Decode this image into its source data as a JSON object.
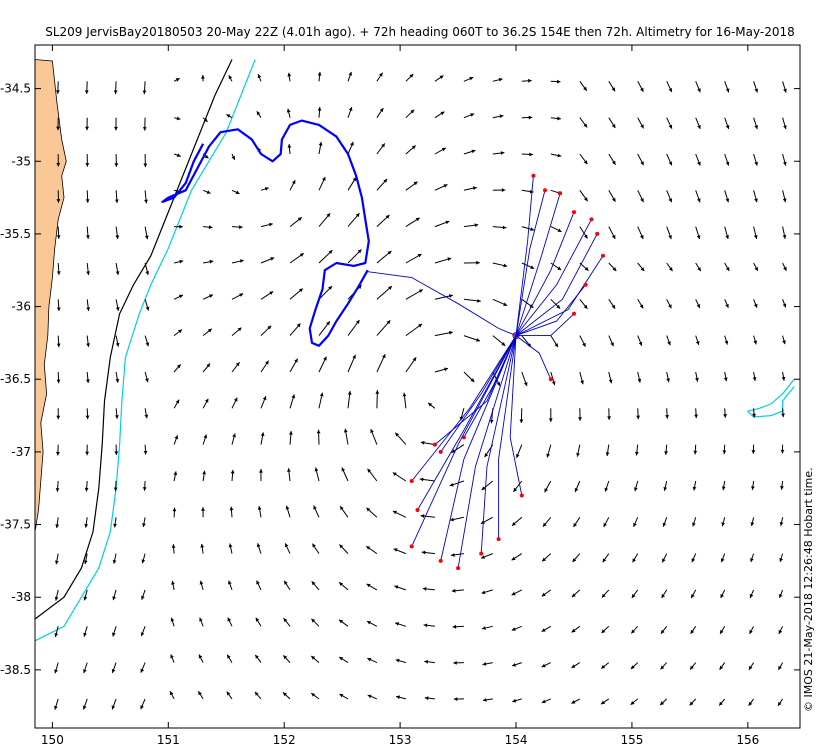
{
  "chart_data": {
    "type": "map-vector-field",
    "title": "SL209 JervisBay20180503 20-May 22Z (4.01h ago). + 72h heading 060T to 36.2S 154E then 72h. Altimetry for 16-May-2018",
    "credit": "© IMOS 21-May-2018 12:26:48 Hobart time.",
    "xlim": [
      149.85,
      156.45
    ],
    "ylim": [
      -38.9,
      -34.2
    ],
    "x_ticks": [
      150,
      151,
      152,
      153,
      154,
      155,
      156
    ],
    "x_tick_labels": [
      "150",
      "151",
      "152",
      "153",
      "154",
      "155",
      "156"
    ],
    "y_ticks": [
      -34.5,
      -35,
      -35.5,
      -36,
      -36.5,
      -37,
      -37.5,
      -38,
      -38.5
    ],
    "y_tick_labels": [
      "-34.5",
      "-35",
      "-35.5",
      "-36",
      "-36.5",
      "-37",
      "-37.5",
      "-38",
      "-38.5"
    ],
    "grid": false,
    "colors": {
      "land": "#fac896",
      "glider_track": "#0000ff",
      "forecast_tracks": "#0000cc",
      "forecast_endpoints": "#ff0000",
      "isobath_black": "#000000",
      "isobath_cyan": "#00d0e0",
      "current_arrows": "#000000"
    },
    "features": {
      "target": {
        "lon": 154.0,
        "lat": -36.2
      },
      "glider_position": {
        "lon": 152.7,
        "lat": -35.77
      },
      "forecast_heading_deg": 60,
      "forecast_hours": 72
    },
    "coastline": [
      [
        149.85,
        -34.3
      ],
      [
        150.0,
        -34.31
      ],
      [
        150.04,
        -34.6
      ],
      [
        150.08,
        -34.85
      ],
      [
        150.12,
        -35.0
      ],
      [
        150.08,
        -35.1
      ],
      [
        150.1,
        -35.25
      ],
      [
        150.05,
        -35.4
      ],
      [
        150.02,
        -35.6
      ],
      [
        150.0,
        -35.8
      ],
      [
        149.97,
        -36.0
      ],
      [
        149.96,
        -36.2
      ],
      [
        149.93,
        -36.4
      ],
      [
        149.95,
        -36.6
      ],
      [
        149.9,
        -36.8
      ],
      [
        149.92,
        -37.0
      ],
      [
        149.9,
        -37.2
      ],
      [
        149.88,
        -37.4
      ],
      [
        149.85,
        -37.55
      ]
    ],
    "isobath_200m": [
      [
        151.55,
        -34.3
      ],
      [
        151.4,
        -34.55
      ],
      [
        151.25,
        -34.85
      ],
      [
        151.15,
        -35.05
      ],
      [
        151.05,
        -35.25
      ],
      [
        150.95,
        -35.45
      ],
      [
        150.85,
        -35.65
      ],
      [
        150.7,
        -35.85
      ],
      [
        150.58,
        -36.05
      ],
      [
        150.5,
        -36.35
      ],
      [
        150.45,
        -36.65
      ],
      [
        150.43,
        -36.95
      ],
      [
        150.4,
        -37.25
      ],
      [
        150.35,
        -37.55
      ],
      [
        150.25,
        -37.8
      ],
      [
        150.1,
        -38.0
      ],
      [
        149.85,
        -38.15
      ]
    ],
    "isobath_2000m": [
      [
        151.75,
        -34.3
      ],
      [
        151.65,
        -34.5
      ],
      [
        151.5,
        -34.8
      ],
      [
        151.35,
        -35.0
      ],
      [
        151.2,
        -35.2
      ],
      [
        151.1,
        -35.4
      ],
      [
        151.0,
        -35.6
      ],
      [
        150.85,
        -35.85
      ],
      [
        150.75,
        -36.05
      ],
      [
        150.63,
        -36.35
      ],
      [
        150.6,
        -36.65
      ],
      [
        150.58,
        -36.95
      ],
      [
        150.55,
        -37.25
      ],
      [
        150.5,
        -37.55
      ],
      [
        150.4,
        -37.8
      ],
      [
        150.25,
        -38.0
      ],
      [
        150.1,
        -38.2
      ],
      [
        149.85,
        -38.3
      ]
    ],
    "island_contour": [
      [
        156.4,
        -36.55
      ],
      [
        156.35,
        -36.6
      ],
      [
        156.3,
        -36.65
      ],
      [
        156.3,
        -36.72
      ],
      [
        156.2,
        -36.75
      ],
      [
        156.05,
        -36.76
      ],
      [
        156.0,
        -36.72
      ],
      [
        156.1,
        -36.7
      ],
      [
        156.2,
        -36.67
      ],
      [
        156.3,
        -36.6
      ],
      [
        156.4,
        -36.5
      ]
    ],
    "glider_track": [
      [
        152.72,
        -35.75
      ],
      [
        152.65,
        -35.85
      ],
      [
        152.55,
        -35.98
      ],
      [
        152.45,
        -36.1
      ],
      [
        152.38,
        -36.2
      ],
      [
        152.3,
        -36.27
      ],
      [
        152.24,
        -36.25
      ],
      [
        152.22,
        -36.15
      ],
      [
        152.27,
        -36.02
      ],
      [
        152.33,
        -35.88
      ],
      [
        152.35,
        -35.75
      ],
      [
        152.45,
        -35.7
      ],
      [
        152.6,
        -35.72
      ],
      [
        152.7,
        -35.7
      ],
      [
        152.73,
        -35.55
      ],
      [
        152.7,
        -35.4
      ],
      [
        152.67,
        -35.25
      ],
      [
        152.62,
        -35.1
      ],
      [
        152.55,
        -34.95
      ],
      [
        152.45,
        -34.83
      ],
      [
        152.3,
        -34.75
      ],
      [
        152.15,
        -34.72
      ],
      [
        152.05,
        -34.75
      ],
      [
        151.98,
        -34.85
      ],
      [
        151.97,
        -34.95
      ],
      [
        151.9,
        -35.0
      ],
      [
        151.8,
        -34.95
      ],
      [
        151.72,
        -34.85
      ],
      [
        151.6,
        -34.78
      ],
      [
        151.45,
        -34.8
      ],
      [
        151.35,
        -34.9
      ],
      [
        151.25,
        -35.05
      ],
      [
        151.15,
        -35.2
      ],
      [
        151.0,
        -35.25
      ],
      [
        150.95,
        -35.28
      ],
      [
        151.05,
        -35.25
      ],
      [
        151.15,
        -35.15
      ],
      [
        151.22,
        -35.0
      ],
      [
        151.3,
        -34.88
      ]
    ],
    "forecast_tracks": [
      [
        [
          152.72,
          -35.76
        ],
        [
          153.1,
          -35.8
        ],
        [
          153.5,
          -35.98
        ],
        [
          153.85,
          -36.15
        ],
        [
          154.0,
          -36.2
        ]
      ],
      [
        [
          154.0,
          -36.2
        ],
        [
          154.12,
          -35.6
        ],
        [
          154.25,
          -35.2
        ]
      ],
      [
        [
          154.0,
          -36.2
        ],
        [
          154.22,
          -35.65
        ],
        [
          154.38,
          -35.22
        ]
      ],
      [
        [
          154.0,
          -36.2
        ],
        [
          154.3,
          -35.75
        ],
        [
          154.5,
          -35.35
        ]
      ],
      [
        [
          154.0,
          -36.2
        ],
        [
          154.35,
          -35.85
        ],
        [
          154.65,
          -35.4
        ]
      ],
      [
        [
          154.0,
          -36.2
        ],
        [
          154.4,
          -35.95
        ],
        [
          154.7,
          -35.5
        ]
      ],
      [
        [
          154.0,
          -36.2
        ],
        [
          154.45,
          -36.02
        ],
        [
          154.75,
          -35.65
        ]
      ],
      [
        [
          154.0,
          -36.2
        ],
        [
          154.35,
          -36.1
        ],
        [
          154.6,
          -35.85
        ]
      ],
      [
        [
          154.0,
          -36.2
        ],
        [
          154.3,
          -36.2
        ],
        [
          154.5,
          -36.05
        ]
      ],
      [
        [
          154.0,
          -36.2
        ],
        [
          154.2,
          -36.32
        ],
        [
          154.3,
          -36.5
        ]
      ],
      [
        [
          154.0,
          -36.2
        ],
        [
          153.8,
          -36.55
        ],
        [
          153.55,
          -36.9
        ]
      ],
      [
        [
          154.0,
          -36.2
        ],
        [
          153.7,
          -36.6
        ],
        [
          153.35,
          -37.0
        ]
      ],
      [
        [
          154.0,
          -36.2
        ],
        [
          153.6,
          -36.7
        ],
        [
          153.1,
          -37.2
        ]
      ],
      [
        [
          154.0,
          -36.2
        ],
        [
          153.55,
          -36.85
        ],
        [
          153.15,
          -37.4
        ]
      ],
      [
        [
          154.0,
          -36.2
        ],
        [
          153.5,
          -36.95
        ],
        [
          153.1,
          -37.65
        ]
      ],
      [
        [
          154.0,
          -36.2
        ],
        [
          153.55,
          -37.05
        ],
        [
          153.35,
          -37.75
        ]
      ],
      [
        [
          154.0,
          -36.2
        ],
        [
          153.65,
          -37.1
        ],
        [
          153.5,
          -37.8
        ]
      ],
      [
        [
          154.0,
          -36.2
        ],
        [
          153.75,
          -37.1
        ],
        [
          153.7,
          -37.7
        ]
      ],
      [
        [
          154.0,
          -36.2
        ],
        [
          153.85,
          -37.05
        ],
        [
          153.85,
          -37.6
        ]
      ],
      [
        [
          154.0,
          -36.2
        ],
        [
          153.95,
          -36.9
        ],
        [
          154.05,
          -37.3
        ]
      ],
      [
        [
          154.0,
          -36.2
        ],
        [
          153.75,
          -36.65
        ],
        [
          153.3,
          -36.95
        ]
      ],
      [
        [
          154.0,
          -36.2
        ],
        [
          154.1,
          -35.55
        ],
        [
          154.15,
          -35.1
        ]
      ]
    ]
  }
}
